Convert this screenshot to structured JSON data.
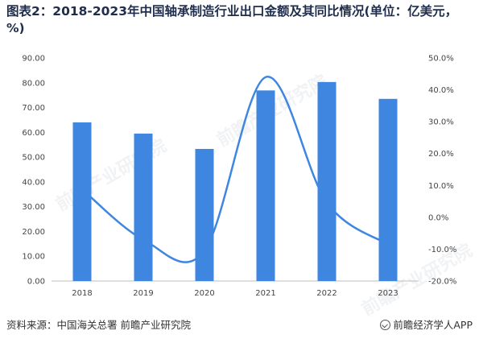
{
  "title": "图表2：2018-2023年中国轴承制造行业出口金额及其同比情况(单位：亿美元，%)",
  "footer": {
    "source": "资料来源：中国海关总署 前瞻产业研究院",
    "brand": "前瞻经济学人APP"
  },
  "watermark": "前瞻产业研究院",
  "colors": {
    "bar": "#3f86e0",
    "line": "#3f86e0"
  },
  "chart_data": {
    "type": "bar",
    "categories": [
      "2018",
      "2019",
      "2020",
      "2021",
      "2022",
      "2023"
    ],
    "series": [
      {
        "type": "bar",
        "axis": "left",
        "values": [
          64.0,
          59.5,
          53.3,
          76.9,
          80.3,
          73.5
        ]
      },
      {
        "type": "line",
        "axis": "right",
        "values": [
          8.8,
          -7.0,
          -10.5,
          44.0,
          4.6,
          -8.5
        ]
      }
    ],
    "ylim_left": [
      0,
      90
    ],
    "ylim_right": [
      -20,
      50
    ],
    "yticks_left": [
      "0.00",
      "10.00",
      "20.00",
      "30.00",
      "40.00",
      "50.00",
      "60.00",
      "70.00",
      "80.00",
      "90.00"
    ],
    "yticks_right": [
      "-20.0%",
      "-10.0%",
      "0.0%",
      "10.0%",
      "20.0%",
      "30.0%",
      "40.0%",
      "50.0%"
    ],
    "grid": false,
    "legend": "none"
  }
}
